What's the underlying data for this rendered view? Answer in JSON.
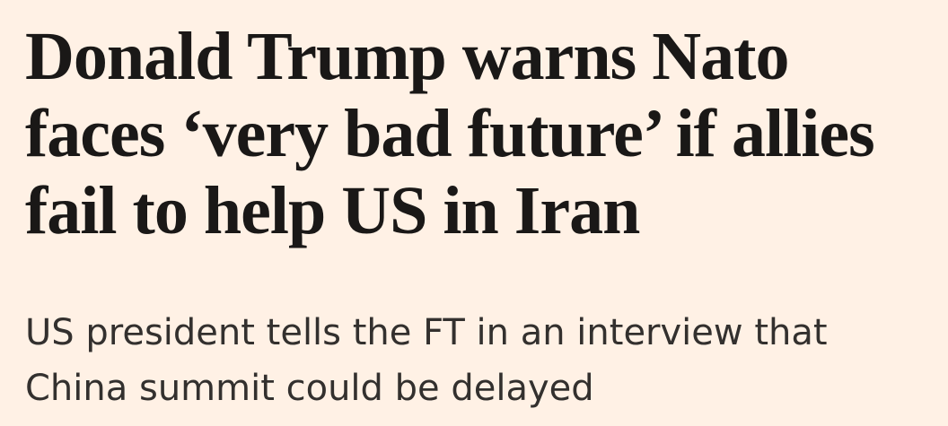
{
  "article": {
    "headline": "Donald Trump warns Nato faces ‘very bad future’ if allies fail to help US in Iran",
    "standfirst": "US president tells the FT in an interview that China summit could be delayed"
  }
}
